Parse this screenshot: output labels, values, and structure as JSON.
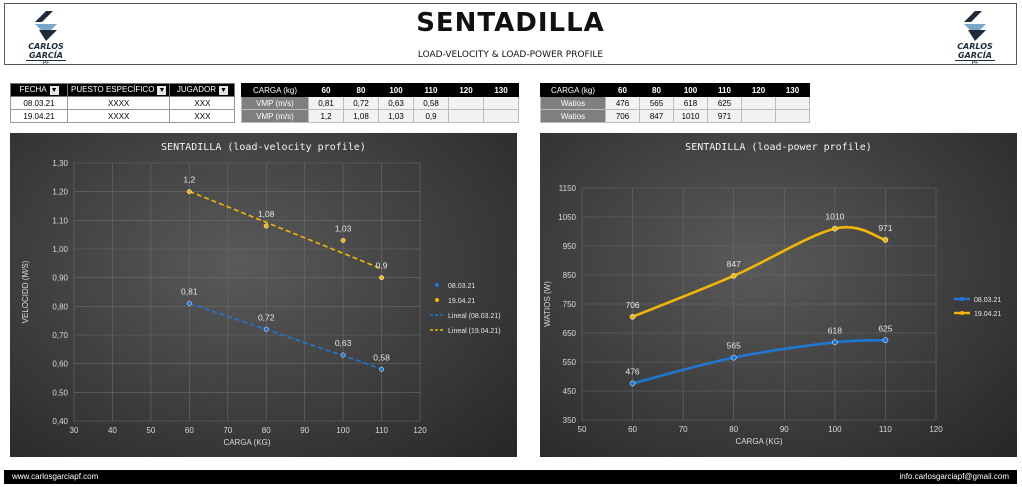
{
  "header": {
    "title": "SENTADILLA",
    "subtitle": "LOAD-VELOCITY & LOAD-POWER PROFILE",
    "logo_text": "CARLOS GARCÍA",
    "logo_sub": "PF"
  },
  "info_table": {
    "headers": [
      "FECHA",
      "PUESTO ESPECÍFICO",
      "JUGADOR"
    ],
    "rows": [
      [
        "08.03.21",
        "XXXX",
        "XXX"
      ],
      [
        "19.04.21",
        "XXXX",
        "XXX"
      ]
    ]
  },
  "velocity_table": {
    "header_label": "CARGA (kg)",
    "loads": [
      "60",
      "80",
      "100",
      "110",
      "120",
      "130"
    ],
    "rows": [
      {
        "label": "VMP (m/s)",
        "values": [
          "0,81",
          "0,72",
          "0,63",
          "0,58",
          "",
          ""
        ]
      },
      {
        "label": "VMP (m/s)",
        "values": [
          "1,2",
          "1,08",
          "1,03",
          "0,9",
          "",
          ""
        ]
      }
    ]
  },
  "power_table": {
    "header_label": "CARGA (kg)",
    "loads": [
      "60",
      "80",
      "100",
      "110",
      "120",
      "130"
    ],
    "rows": [
      {
        "label": "Watios",
        "values": [
          "476",
          "565",
          "618",
          "625",
          "",
          ""
        ]
      },
      {
        "label": "Watios",
        "values": [
          "706",
          "847",
          "1010",
          "971",
          "",
          ""
        ]
      }
    ]
  },
  "chart_data": [
    {
      "type": "scatter",
      "title": "SENTADILLA (load-velocity profile)",
      "xlabel": "CARGA (KG)",
      "ylabel": "VELOCIDD (M/S)",
      "xlim": [
        30,
        120
      ],
      "ylim": [
        0.4,
        1.3
      ],
      "xticks": [
        "30",
        "40",
        "50",
        "60",
        "70",
        "80",
        "90",
        "100",
        "110",
        "120"
      ],
      "yticks": [
        "0,40",
        "0,50",
        "0,60",
        "0,70",
        "0,80",
        "0,90",
        "1,00",
        "1,10",
        "1,20",
        "1,30"
      ],
      "grid": true,
      "legend_position": "right",
      "series": [
        {
          "name": "08.03.21",
          "color": "#1f77d4",
          "x": [
            60,
            80,
            100,
            110
          ],
          "y": [
            0.81,
            0.72,
            0.63,
            0.58
          ],
          "labels": [
            "0,81",
            "0,72",
            "0,63",
            "0,58"
          ]
        },
        {
          "name": "19.04.21",
          "color": "#f2b705",
          "x": [
            60,
            80,
            100,
            110
          ],
          "y": [
            1.2,
            1.08,
            1.03,
            0.9
          ],
          "labels": [
            "1,2",
            "1,08",
            "1,03",
            "0,9"
          ]
        }
      ],
      "trendlines": [
        {
          "name": "Lineal  (08.03.21)",
          "color": "#1f77d4"
        },
        {
          "name": "Lineal  (19.04.21)",
          "color": "#f2b705"
        }
      ]
    },
    {
      "type": "line",
      "title": "SENTADILLA (load-power profile)",
      "xlabel": "CARGA (KG)",
      "ylabel": "WATIOS (W)",
      "xlim": [
        50,
        120
      ],
      "ylim": [
        350,
        1150
      ],
      "xticks": [
        "50",
        "60",
        "70",
        "80",
        "90",
        "100",
        "110",
        "120"
      ],
      "yticks": [
        "350",
        "450",
        "550",
        "650",
        "750",
        "850",
        "950",
        "1050",
        "1150"
      ],
      "grid": true,
      "legend_position": "right",
      "series": [
        {
          "name": "08.03.21",
          "color": "#1f77d4",
          "x": [
            60,
            80,
            100,
            110
          ],
          "y": [
            476,
            565,
            618,
            625
          ],
          "labels": [
            "476",
            "565",
            "618",
            "625"
          ]
        },
        {
          "name": "19.04.21",
          "color": "#f2b705",
          "x": [
            60,
            80,
            100,
            110
          ],
          "y": [
            706,
            847,
            1010,
            971
          ],
          "labels": [
            "706",
            "847",
            "1010",
            "971"
          ]
        }
      ]
    }
  ],
  "footer": {
    "left": "www.carlosgarciapf.com",
    "right": "info.carlosgarciapf@gmail.com"
  }
}
